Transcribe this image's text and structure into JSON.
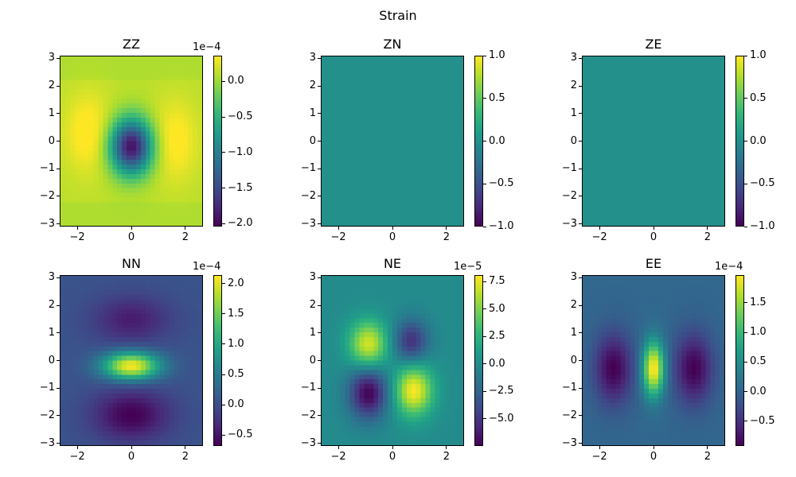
{
  "chart_data": {
    "type": "heatmap",
    "title": "Strain",
    "colormap": "viridis",
    "xlim": [
      -2.65,
      2.65
    ],
    "ylim": [
      -3.1,
      3.1
    ],
    "xticks": [
      -2,
      0,
      2
    ],
    "yticks": [
      -3,
      -2,
      -1,
      0,
      1,
      2,
      3
    ],
    "panels": [
      {
        "title": "ZZ",
        "scale_label": "1e−4",
        "clim": [
          -2.04,
          0.36
        ],
        "cbar_ticks": [
          -2.0,
          -1.5,
          -1.0,
          -0.5,
          0.0
        ],
        "cbar_tick_labels": [
          "−2.0",
          "−1.5",
          "−1.0",
          "−0.5",
          "0.0"
        ],
        "min_at": [
          0,
          -0.2
        ],
        "max_at": [
          [
            -1.6,
            0.3
          ],
          [
            1.6,
            0.0
          ]
        ]
      },
      {
        "title": "ZN",
        "scale_label": "",
        "clim": [
          -1,
          1
        ],
        "cbar_ticks": [
          -1.0,
          -0.5,
          0.0,
          0.5,
          1.0
        ],
        "cbar_tick_labels": [
          "−1.0",
          "−0.5",
          "0.0",
          "0.5",
          "1.0"
        ],
        "constant_value": 0
      },
      {
        "title": "ZE",
        "scale_label": "",
        "clim": [
          -1,
          1
        ],
        "cbar_ticks": [
          -1.0,
          -0.5,
          0.0,
          0.5,
          1.0
        ],
        "cbar_tick_labels": [
          "−1.0",
          "−0.5",
          "0.0",
          "0.5",
          "1.0"
        ],
        "constant_value": 0
      },
      {
        "title": "NN",
        "scale_label": "1e−4",
        "clim": [
          -0.68,
          2.14
        ],
        "cbar_ticks": [
          -0.5,
          0.0,
          0.5,
          1.0,
          1.5,
          2.0
        ],
        "cbar_tick_labels": [
          "−0.5",
          "0.0",
          "0.5",
          "1.0",
          "1.5",
          "2.0"
        ],
        "max_at": [
          0,
          -0.2
        ],
        "min_at": [
          [
            0,
            1.5
          ],
          [
            0,
            -2.0
          ]
        ]
      },
      {
        "title": "NE",
        "scale_label": "1e−5",
        "clim": [
          -7.46,
          8.08
        ],
        "cbar_ticks": [
          -5.0,
          -2.5,
          0.0,
          2.5,
          5.0,
          7.5
        ],
        "cbar_tick_labels": [
          "−5.0",
          "−2.5",
          "0.0",
          "2.5",
          "5.0",
          "7.5"
        ],
        "max_at": [
          [
            -0.9,
            0.6
          ],
          [
            0.8,
            -1.1
          ]
        ],
        "min_at": [
          [
            0.7,
            0.7
          ],
          [
            -0.9,
            -1.2
          ]
        ]
      },
      {
        "title": "EE",
        "scale_label": "1e−4",
        "clim": [
          -0.92,
          1.97
        ],
        "cbar_ticks": [
          -0.5,
          0.0,
          0.5,
          1.0,
          1.5
        ],
        "cbar_tick_labels": [
          "−0.5",
          "0.0",
          "0.5",
          "1.0",
          "1.5"
        ],
        "max_at": [
          0,
          -0.3
        ],
        "min_at": [
          [
            -1.5,
            -0.3
          ],
          [
            1.5,
            -0.3
          ]
        ]
      }
    ],
    "xtick_labels": [
      "−2",
      "0",
      "2"
    ],
    "ytick_labels": [
      "−3",
      "−2",
      "−1",
      "0",
      "1",
      "2",
      "3"
    ]
  }
}
